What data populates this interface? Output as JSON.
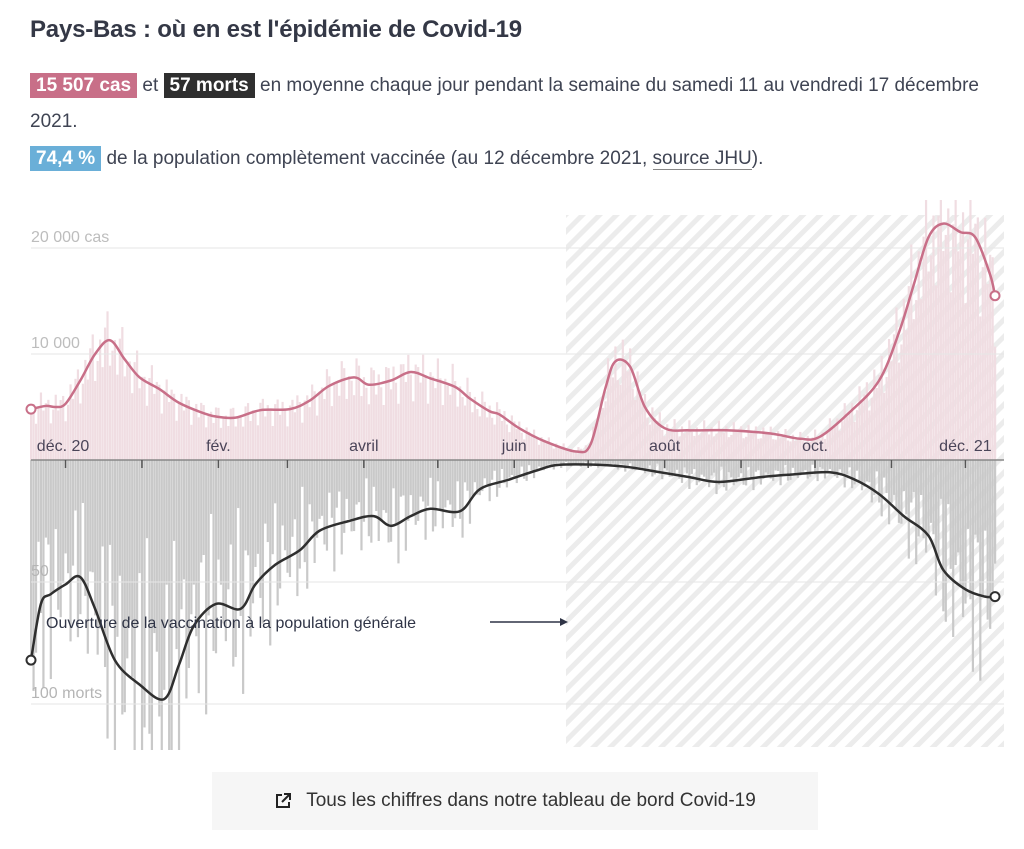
{
  "title": "Pays-Bas : où en est l'épidémie de Covid-19",
  "summary": {
    "cases_badge": "15 507 cas",
    "and": "et",
    "deaths_badge": "57 morts",
    "line1_rest": "en moyenne chaque jour pendant la semaine du samedi 11 au vendredi 17 décembre 2021.",
    "vacc_badge": "74,4 %",
    "vacc_text": "de la population complètement vaccinée (au 12 décembre 2021, ",
    "source_link": "source JHU",
    "vacc_end": ")."
  },
  "colors": {
    "cases": "#c86f88",
    "cases_bars": "#f0dde2",
    "deaths": "#2f2f2f",
    "deaths_bars": "#c9c9c9",
    "vacc": "#6aafd8"
  },
  "chart_data": {
    "type": "line",
    "x_unit": "days since 17 Nov 2020",
    "xlim": [
      0,
      391
    ],
    "x_ticks": [
      14,
      45,
      76,
      104,
      135,
      165,
      196,
      226,
      257,
      288,
      318,
      349,
      379
    ],
    "x_labels": [
      {
        "day": 13,
        "label": "déc. 20"
      },
      {
        "day": 76,
        "label": "fév."
      },
      {
        "day": 135,
        "label": "avril"
      },
      {
        "day": 196,
        "label": "juin"
      },
      {
        "day": 257,
        "label": "août"
      },
      {
        "day": 318,
        "label": "oct."
      },
      {
        "day": 379,
        "label": "déc. 21"
      }
    ],
    "cases_axis": {
      "ylim": [
        0,
        21000
      ],
      "ticks": [
        {
          "value": 10000,
          "label": "10 000"
        },
        {
          "value": 20000,
          "label": "20 000 cas"
        }
      ]
    },
    "deaths_axis": {
      "ylim": [
        0,
        118
      ],
      "ticks": [
        {
          "value": 50,
          "label": "50"
        },
        {
          "value": 100,
          "label": "100 morts"
        }
      ]
    },
    "vaccination_open_day": 217,
    "annotation": "Ouverture de la vaccination à la population générale",
    "series": [
      {
        "name": "cas (moyenne 7 jours)",
        "points": [
          [
            0,
            4800
          ],
          [
            6,
            5100
          ],
          [
            10,
            5000
          ],
          [
            14,
            5300
          ],
          [
            20,
            7500
          ],
          [
            26,
            10000
          ],
          [
            32,
            11300
          ],
          [
            38,
            9500
          ],
          [
            44,
            7800
          ],
          [
            52,
            6700
          ],
          [
            60,
            5400
          ],
          [
            69,
            4500
          ],
          [
            75,
            4100
          ],
          [
            83,
            4000
          ],
          [
            93,
            4700
          ],
          [
            105,
            4800
          ],
          [
            113,
            5600
          ],
          [
            121,
            7000
          ],
          [
            131,
            7800
          ],
          [
            137,
            7100
          ],
          [
            146,
            7500
          ],
          [
            154,
            8300
          ],
          [
            162,
            7700
          ],
          [
            172,
            6900
          ],
          [
            178,
            5800
          ],
          [
            186,
            4600
          ],
          [
            190,
            4300
          ],
          [
            198,
            3000
          ],
          [
            208,
            1800
          ],
          [
            221,
            800
          ],
          [
            227,
            1500
          ],
          [
            233,
            6800
          ],
          [
            237,
            9300
          ],
          [
            243,
            8800
          ],
          [
            249,
            5000
          ],
          [
            257,
            3000
          ],
          [
            267,
            2800
          ],
          [
            283,
            2800
          ],
          [
            300,
            2500
          ],
          [
            312,
            2000
          ],
          [
            320,
            2200
          ],
          [
            332,
            4500
          ],
          [
            344,
            7500
          ],
          [
            352,
            12000
          ],
          [
            358,
            16500
          ],
          [
            364,
            21000
          ],
          [
            370,
            22300
          ],
          [
            377,
            21500
          ],
          [
            383,
            21000
          ],
          [
            389,
            17500
          ],
          [
            391,
            15500
          ]
        ]
      },
      {
        "name": "morts (moyenne 7 jours)",
        "points": [
          [
            0,
            82
          ],
          [
            4,
            59
          ],
          [
            8,
            55
          ],
          [
            14,
            51
          ],
          [
            20,
            48
          ],
          [
            26,
            61
          ],
          [
            34,
            82
          ],
          [
            44,
            92
          ],
          [
            54,
            98
          ],
          [
            60,
            84
          ],
          [
            66,
            68
          ],
          [
            75,
            59
          ],
          [
            85,
            61
          ],
          [
            91,
            51
          ],
          [
            99,
            43
          ],
          [
            109,
            37
          ],
          [
            117,
            29
          ],
          [
            129,
            25
          ],
          [
            139,
            23
          ],
          [
            146,
            27
          ],
          [
            154,
            23
          ],
          [
            162,
            20
          ],
          [
            174,
            21
          ],
          [
            182,
            12
          ],
          [
            194,
            8
          ],
          [
            206,
            4
          ],
          [
            214,
            2
          ],
          [
            231,
            2
          ],
          [
            243,
            3
          ],
          [
            255,
            5
          ],
          [
            267,
            7
          ],
          [
            279,
            9
          ],
          [
            296,
            7
          ],
          [
            308,
            6
          ],
          [
            324,
            5
          ],
          [
            334,
            8
          ],
          [
            344,
            14
          ],
          [
            354,
            23
          ],
          [
            364,
            31
          ],
          [
            370,
            45
          ],
          [
            379,
            53
          ],
          [
            387,
            56
          ],
          [
            391,
            56
          ]
        ]
      }
    ]
  },
  "footer_link": "Tous les chiffres dans notre tableau de bord Covid-19"
}
